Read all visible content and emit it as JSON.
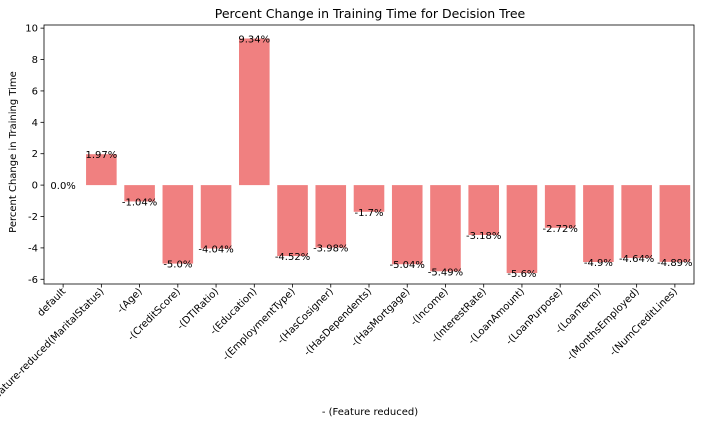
{
  "chart_data": {
    "type": "bar",
    "title": "Percent Change in Training Time for Decision Tree",
    "xlabel": "- (Feature reduced)",
    "ylabel": "Percent Change in Training Time",
    "ylim": [
      -6.3,
      10.2
    ],
    "yticks": [
      -6,
      -4,
      -2,
      0,
      2,
      4,
      6,
      8,
      10
    ],
    "grid": false,
    "legend": "none",
    "bar_color": "#f08080",
    "categories": [
      "default",
      "feature-reduced(MaritalStatus)",
      "-(Age)",
      "-(CreditScore)",
      "-(DTIRatio)",
      "-(Education)",
      "-(EmploymentType)",
      "-(HasCosigner)",
      "-(HasDependents)",
      "-(HasMortgage)",
      "-(Income)",
      "-(InterestRate)",
      "-(LoanAmount)",
      "-(LoanPurpose)",
      "-(LoanTerm)",
      "-(MonthsEmployed)",
      "-(NumCreditLines)"
    ],
    "values": [
      0.0,
      1.97,
      -1.04,
      -5.0,
      -4.04,
      9.34,
      -4.52,
      -3.98,
      -1.7,
      -5.04,
      -5.49,
      -3.18,
      -5.6,
      -2.72,
      -4.9,
      -4.64,
      -4.89
    ],
    "data_labels": [
      "0.0%",
      "1.97%",
      "-1.04%",
      "-5.0%",
      "-4.04%",
      "9.34%",
      "-4.52%",
      "-3.98%",
      "-1.7%",
      "-5.04%",
      "-5.49%",
      "-3.18%",
      "-5.6%",
      "-2.72%",
      "-4.9%",
      "-4.64%",
      "-4.89%"
    ]
  }
}
